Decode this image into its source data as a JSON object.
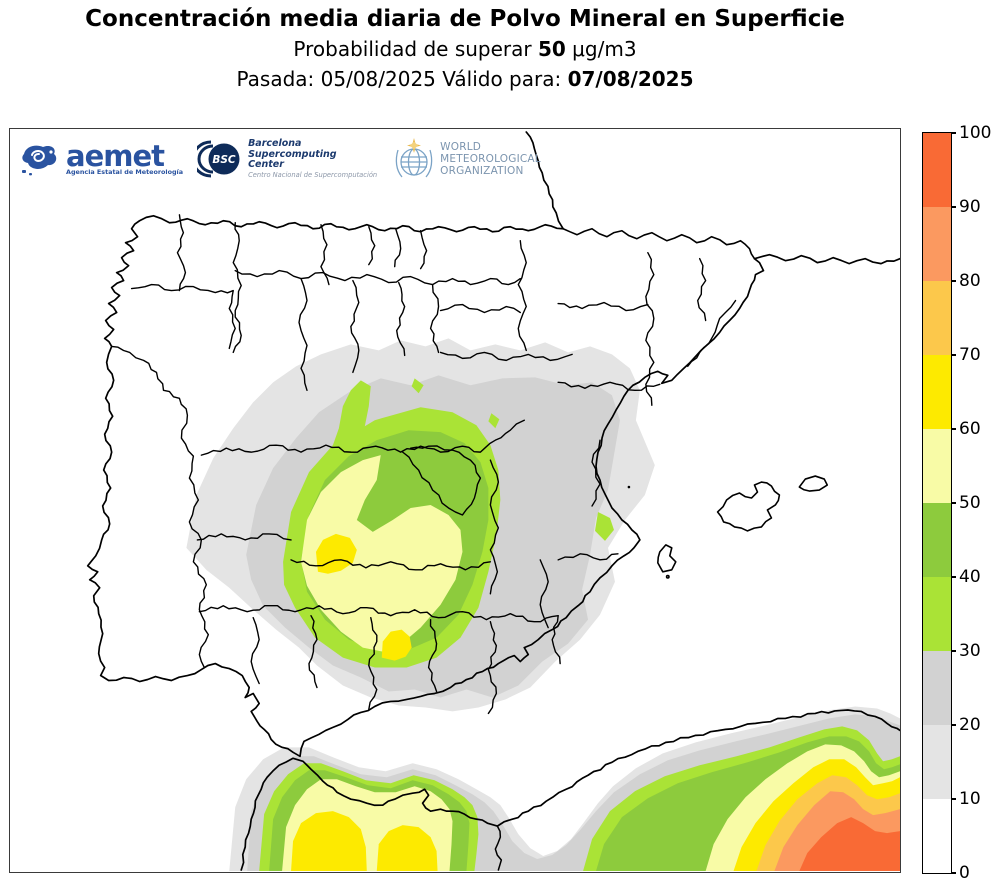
{
  "title": {
    "line1": "Concentración media diaria de Polvo Mineral en Superficie",
    "line2_prefix": "Probabilidad de superar ",
    "line2_value": "50",
    "line2_suffix": " μg/m3",
    "line3_prefix": "Pasada: 05/08/2025 Válido para: ",
    "line3_value": "07/08/2025"
  },
  "logos": {
    "aemet": {
      "name": "aemet",
      "tagline": "Agencia Estatal de Meteorología"
    },
    "bsc": {
      "abbr": "BSC",
      "line1": "Barcelona",
      "line2": "Supercomputing",
      "line3": "Center",
      "tagline": "Centro Nacional de Supercomputación"
    },
    "wmo": {
      "line1": "WORLD",
      "line2": "METEOROLOGICAL",
      "line3": "ORGANIZATION"
    }
  },
  "colorbar": {
    "ticks": [
      0,
      10,
      20,
      30,
      40,
      50,
      60,
      70,
      80,
      90,
      100
    ],
    "segments": [
      {
        "band": "0-10",
        "color": "#ffffff"
      },
      {
        "band": "10-20",
        "color": "#e4e4e4"
      },
      {
        "band": "20-30",
        "color": "#d2d2d2"
      },
      {
        "band": "30-40",
        "color": "#aae336"
      },
      {
        "band": "40-50",
        "color": "#8dcb3d"
      },
      {
        "band": "50-60",
        "color": "#f8fba6"
      },
      {
        "band": "60-70",
        "color": "#fdea00"
      },
      {
        "band": "70-80",
        "color": "#fcc84b"
      },
      {
        "band": "80-90",
        "color": "#fb9960"
      },
      {
        "band": "90-100",
        "color": "#f96a35"
      }
    ]
  },
  "chart_data": {
    "type": "contour-map",
    "title": "Concentración media diaria de Polvo Mineral en Superficie",
    "variable": "Probabilidad de superar 50 μg/m3 (%)",
    "run_date": "05/08/2025",
    "valid_date": "07/08/2025",
    "levels": [
      0,
      10,
      20,
      30,
      40,
      50,
      60,
      70,
      80,
      90,
      100
    ],
    "colors": [
      "#ffffff",
      "#e4e4e4",
      "#d2d2d2",
      "#aae336",
      "#8dcb3d",
      "#f8fba6",
      "#fdea00",
      "#fcc84b",
      "#fb9960",
      "#f96a35"
    ],
    "legend_position": "right",
    "features": [
      {
        "area": "Central Iberia (south of Madrid, La Mancha / Extremadura east)",
        "max_band": "60-70"
      },
      {
        "area": "Ring around central Iberia",
        "bands": "10-50"
      },
      {
        "area": "Northern Morocco coast (bottom left)",
        "max_band": "60-70"
      },
      {
        "area": "NW Algeria (bottom right corner)",
        "max_band": "90-100"
      },
      {
        "area": "North & east Spain, Portugal, Balearic Islands",
        "max_band": "0-10"
      }
    ]
  }
}
